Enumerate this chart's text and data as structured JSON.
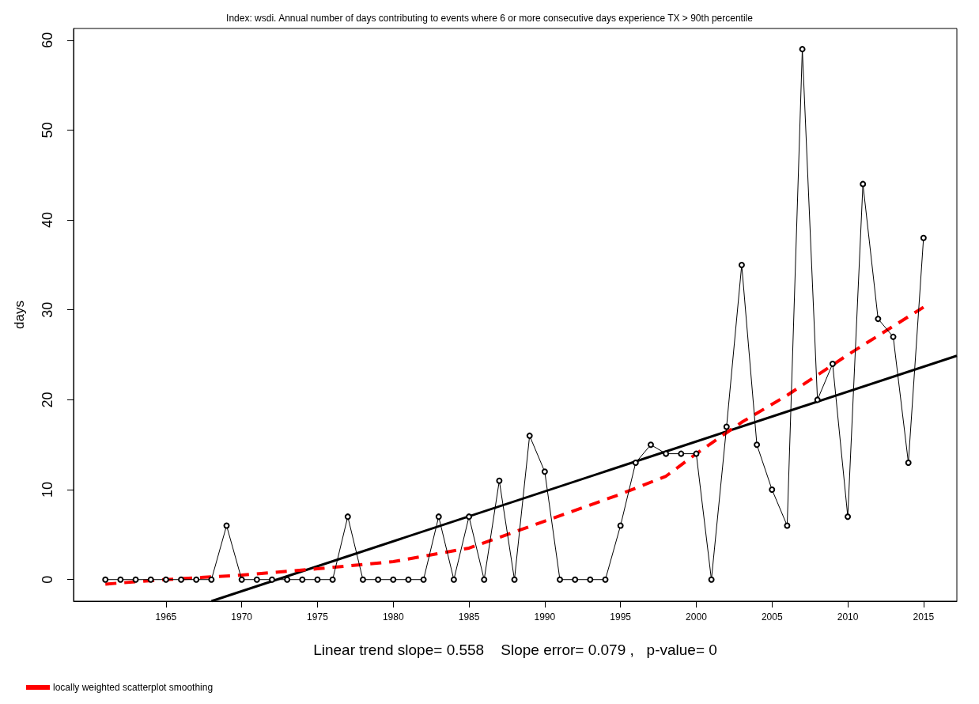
{
  "chart_data": {
    "type": "line",
    "title": "Index: wsdi. Annual number of days contributing to events where 6 or more consecutive days experience TX > 90th percentile",
    "xlabel": "Linear trend slope= 0.558    Slope error= 0.079 ,   p-value= 0",
    "ylabel": "days",
    "xlim": [
      1958.9,
      2017.2
    ],
    "xticks": [
      1965,
      1970,
      1975,
      1980,
      1985,
      1990,
      1995,
      2000,
      2005,
      2010,
      2015
    ],
    "ylim": [
      -2.4,
      61.3
    ],
    "yticks": [
      0,
      10,
      20,
      30,
      40,
      50,
      60
    ],
    "grid": false,
    "legend": "bottom left",
    "series": [
      {
        "color": "#000000",
        "marker": "circle",
        "line_style": "solid",
        "x": [
          1961,
          1962,
          1963,
          1964,
          1965,
          1966,
          1967,
          1968,
          1969,
          1970,
          1971,
          1972,
          1973,
          1974,
          1975,
          1976,
          1977,
          1978,
          1979,
          1980,
          1981,
          1982,
          1983,
          1984,
          1985,
          1986,
          1987,
          1988,
          1989,
          1990,
          1991,
          1992,
          1993,
          1994,
          1995,
          1996,
          1997,
          1998,
          1999,
          2000,
          2001,
          2002,
          2003,
          2004,
          2005,
          2006,
          2007,
          2008,
          2009,
          2010,
          2011,
          2012,
          2013,
          2014,
          2015
        ],
        "values": [
          0,
          0,
          0,
          0,
          0,
          0,
          0,
          0,
          6,
          0,
          0,
          0,
          0,
          0,
          0,
          0,
          7,
          0,
          0,
          0,
          0,
          0,
          7,
          0,
          7,
          0,
          11,
          0,
          16,
          12,
          0,
          0,
          0,
          0,
          6,
          13,
          15,
          14,
          14,
          14,
          0,
          17,
          35,
          15,
          10,
          6,
          59,
          20,
          24,
          7,
          44,
          29,
          27,
          13,
          38
        ]
      },
      {
        "color": "#000000",
        "marker": "none",
        "line_style": "solid",
        "x": [
          1968,
          2017.2
        ],
        "values": [
          -2.4,
          24.9
        ]
      },
      {
        "name": "locally weighted scatterplot smoothing",
        "color": "#ff0000",
        "marker": "none",
        "line_style": "dashed",
        "x": [
          1961,
          1965,
          1970,
          1975,
          1980,
          1985,
          1990,
          1995,
          1998,
          2000,
          2003,
          2006,
          2010,
          2015
        ],
        "values": [
          -0.5,
          0,
          0.5,
          1.2,
          2,
          3.5,
          6.5,
          9.5,
          11.5,
          14,
          17.5,
          20.5,
          25,
          30.3
        ]
      }
    ]
  }
}
